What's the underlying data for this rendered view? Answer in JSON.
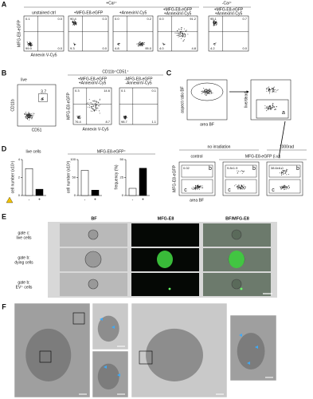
{
  "panel_a": {
    "label": "A",
    "ca_plus": "+Ca²⁺",
    "ca_minus": "-Ca²⁺",
    "y_axis": "MFG-E8-eGFP",
    "x_axis": "Annexin V-Cy5",
    "plots": [
      {
        "title": [
          "unstained ctrl"
        ],
        "quadrants": [
          "0.1",
          "0.0",
          "99.9",
          "0.0"
        ]
      },
      {
        "title": [
          "+MFG-E8-eGFP"
        ],
        "quadrants": [
          "90.4",
          "0.3",
          "9.3",
          "0.0"
        ]
      },
      {
        "title": [
          "+AnnexinV-Cy5"
        ],
        "quadrants": [
          "0.0",
          "0.2",
          "4.8",
          "95.0"
        ]
      },
      {
        "title": [
          "+MFG-E8-eGFP",
          "+AnnexinV-Cy5"
        ],
        "quadrants": [
          "0.0",
          "91.2",
          "4.0",
          "4.8"
        ]
      },
      {
        "title": [
          "+MFG-E8-eGFP",
          "+AnnexinV-Cy5"
        ],
        "quadrants": [
          "95.1",
          "0.7",
          "4.2",
          "0.0"
        ]
      }
    ]
  },
  "panel_b": {
    "label": "B",
    "live_label": "live",
    "gate_value": "3.7",
    "y_axis": "CD11b",
    "x_axis": "CD51",
    "header": "CD11b⁺CD51⁺",
    "y_axis2": "MFG-E8-eGFP",
    "x_axis2": "Annexin V-Cy5",
    "plots": [
      {
        "title": [
          "+MFG-E8-eGFP",
          "+AnnexinV-Cy5"
        ],
        "quadrants": [
          "0.3",
          "14.6",
          "76.4",
          "8.7"
        ]
      },
      {
        "title": [
          "-MFG-E8-eGFP",
          "-AnnexinV-Cy5"
        ],
        "quadrants": [
          "0.1",
          "0.1",
          "98.7",
          "1.1"
        ]
      }
    ]
  },
  "panel_c": {
    "label": "C",
    "y_axis": "aspect ratio BF",
    "x_axis": "area BF",
    "y_axis_right": "live/dead",
    "gate_a": "a",
    "group_1": "no irradiation",
    "group_2": "1000rad",
    "col_1": "control",
    "col_2": "MFG-E8-eGFP (i.v.)",
    "y_axis2": "MFG-E8-eGFP",
    "x_axis2": "area BF",
    "gate_b": "b",
    "gate_c": "c",
    "values": [
      "0.02",
      "9.8±1.9",
      "38.6±6.0"
    ]
  },
  "panel_d": {
    "label": "D",
    "group_1": "live cells",
    "group_2": "MFG-E8-eGFP⁺",
    "charts": [
      {
        "y_label": "cell number (x10⁵)",
        "categories": [
          "-",
          "+"
        ],
        "values": [
          3,
          0.7
        ],
        "colors": [
          "#ffffff",
          "#000000"
        ],
        "ylim": [
          0,
          4
        ],
        "yticks": [
          0,
          2,
          4
        ]
      },
      {
        "y_label": "cell number (x10³)",
        "categories": [
          "-",
          "+"
        ],
        "values": [
          70,
          15
        ],
        "colors": [
          "#ffffff",
          "#000000"
        ],
        "ylim": [
          0,
          100
        ],
        "yticks": [
          0,
          50,
          100
        ]
      },
      {
        "y_label": "frequency (%)",
        "categories": [
          "-",
          "+"
        ],
        "values": [
          10,
          38
        ],
        "colors": [
          "#ffffff",
          "#000000"
        ],
        "ylim": [
          0,
          50
        ],
        "yticks": [
          0,
          25,
          50
        ]
      }
    ]
  },
  "panel_e": {
    "label": "E",
    "columns": [
      "BF",
      "MFG-E8",
      "BF/MFG-E8"
    ],
    "rows": [
      [
        "gate c:",
        "live cells"
      ],
      [
        "gate b:",
        "dying cells"
      ],
      [
        "gate b:",
        "EV⁺ cells"
      ]
    ]
  },
  "panel_f": {
    "label": "F"
  }
}
